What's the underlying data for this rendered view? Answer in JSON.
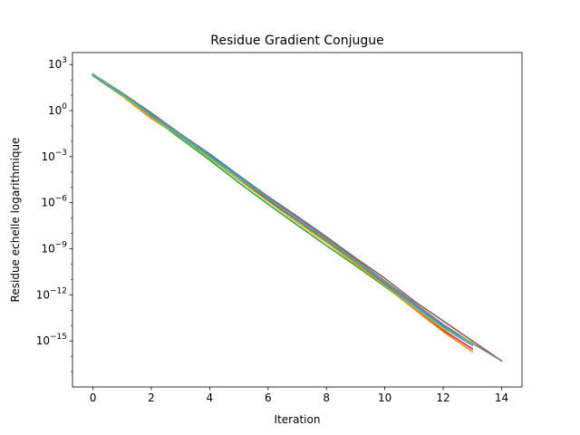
{
  "chart_data": {
    "type": "line",
    "title": "Residue Gradient Conjugue",
    "xlabel": "Iteration",
    "ylabel": "Residue echelle logarithmique",
    "y_scale": "log",
    "xlim": [
      -0.7,
      14.7
    ],
    "ylim": [
      1e-18,
      6000
    ],
    "grid": false,
    "x_ticks": [
      0,
      2,
      4,
      6,
      8,
      10,
      12,
      14
    ],
    "x_tick_labels": [
      "0",
      "2",
      "4",
      "6",
      "8",
      "10",
      "12",
      "14"
    ],
    "y_ticks": [
      1000.0,
      1.0,
      0.001,
      1e-06,
      1e-09,
      1e-12,
      1e-15
    ],
    "y_tick_labels": [
      {
        "base": "10",
        "exp": "3"
      },
      {
        "base": "10",
        "exp": "0"
      },
      {
        "base": "10",
        "exp": "−3"
      },
      {
        "base": "10",
        "exp": "−6"
      },
      {
        "base": "10",
        "exp": "−9"
      },
      {
        "base": "10",
        "exp": "−12"
      },
      {
        "base": "10",
        "exp": "−15"
      }
    ],
    "series": [
      {
        "color": "#1f77b4",
        "x": [
          0,
          1,
          2,
          3,
          4,
          5,
          6,
          7,
          8,
          9,
          10,
          11,
          12,
          13
        ],
        "y": [
          200,
          12,
          0.6,
          0.03,
          0.0015,
          6e-05,
          2.5e-06,
          1.2e-07,
          5e-09,
          2e-10,
          8e-12,
          3e-13,
          1e-14,
          5e-16
        ]
      },
      {
        "color": "#ff7f0e",
        "x": [
          0,
          1,
          2,
          3,
          4,
          5,
          6,
          7,
          8,
          9,
          10,
          11,
          12,
          13
        ],
        "y": [
          180,
          9,
          0.3,
          0.02,
          0.0008,
          3e-05,
          1.5e-06,
          7e-08,
          3e-09,
          1.2e-10,
          4e-12,
          1.2e-13,
          4e-15,
          2e-16
        ]
      },
      {
        "color": "#2ca02c",
        "x": [
          0,
          1,
          2,
          3,
          4,
          5,
          6,
          7,
          8,
          9,
          10,
          11,
          12,
          13
        ],
        "y": [
          190,
          10,
          0.4,
          0.015,
          0.0006,
          2e-05,
          8e-07,
          3.5e-08,
          1.6e-09,
          8e-11,
          3.5e-12,
          1.5e-13,
          7e-15,
          5e-16
        ]
      },
      {
        "color": "#d62728",
        "x": [
          0,
          1,
          2,
          3,
          4,
          5,
          6,
          7,
          8,
          9,
          10,
          11,
          12,
          13
        ],
        "y": [
          210,
          11,
          0.45,
          0.02,
          0.001,
          4e-05,
          1.5e-06,
          7e-08,
          3.5e-09,
          1.5e-10,
          5e-12,
          1.5e-13,
          5e-15,
          3e-16
        ]
      },
      {
        "color": "#9467bd",
        "x": [
          0,
          1,
          2,
          3,
          4,
          5,
          6,
          7,
          8,
          9,
          10,
          11,
          12,
          13
        ],
        "y": [
          220,
          13,
          0.5,
          0.025,
          0.0012,
          5e-05,
          2e-06,
          1e-07,
          4e-09,
          1.8e-10,
          7e-12,
          2.5e-13,
          1e-14,
          6e-16
        ]
      },
      {
        "color": "#8c564b",
        "x": [
          0,
          1,
          2,
          3,
          4,
          5,
          6,
          7,
          8,
          9,
          10,
          11,
          12,
          13,
          14
        ],
        "y": [
          240,
          14,
          0.7,
          0.03,
          0.0012,
          5e-05,
          2.5e-06,
          1.3e-07,
          6e-09,
          2.5e-10,
          1.2e-11,
          4e-13,
          2e-14,
          1e-15,
          5e-17
        ]
      },
      {
        "color": "#e377c2",
        "x": [
          0,
          1,
          2,
          3,
          4,
          5,
          6,
          7,
          8,
          9,
          10,
          11,
          12,
          13
        ],
        "y": [
          200,
          11,
          0.5,
          0.025,
          0.001,
          4e-05,
          2e-06,
          9e-08,
          4e-09,
          1.6e-10,
          6e-12,
          2e-13,
          7e-15,
          5e-16
        ]
      },
      {
        "color": "#7f7f7f",
        "x": [
          0,
          1,
          2,
          3,
          4,
          5,
          6,
          7,
          8,
          9,
          10,
          11,
          12,
          13,
          14
        ],
        "y": [
          230,
          13,
          0.6,
          0.03,
          0.0013,
          5.5e-05,
          2.2e-06,
          1.1e-07,
          5e-09,
          2e-10,
          8e-12,
          3e-13,
          1.2e-14,
          7e-16,
          5e-17
        ]
      },
      {
        "color": "#bcbd22",
        "x": [
          0,
          1,
          2,
          3,
          4,
          5,
          6,
          7,
          8,
          9,
          10,
          11,
          12,
          13
        ],
        "y": [
          260,
          10,
          0.35,
          0.02,
          0.0008,
          3e-05,
          1.2e-06,
          5e-08,
          2.5e-09,
          1e-10,
          4e-12,
          1.5e-13,
          6e-15,
          8e-16
        ]
      },
      {
        "color": "#17becf",
        "x": [
          0,
          1,
          2,
          3,
          4,
          5,
          6,
          7,
          8,
          9,
          10,
          11,
          12,
          13
        ],
        "y": [
          215,
          12,
          0.5,
          0.022,
          0.001,
          4.5e-05,
          1.8e-06,
          8e-08,
          3.8e-09,
          1.6e-10,
          6e-12,
          2e-13,
          8e-15,
          6e-16
        ]
      }
    ]
  }
}
